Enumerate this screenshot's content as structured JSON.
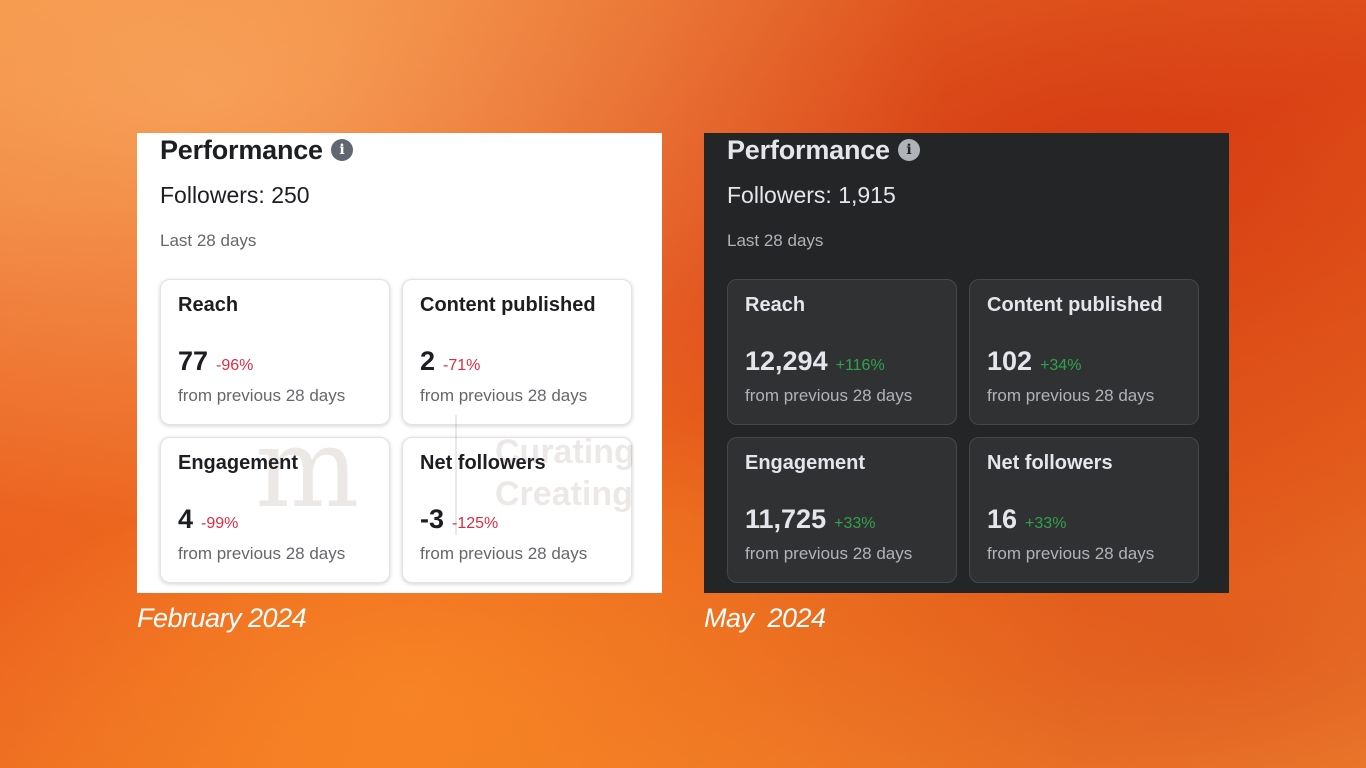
{
  "panels": [
    {
      "theme": "light",
      "title": "Performance",
      "info_icon": "info-circle-icon",
      "followers": "Followers: 250",
      "period": "Last 28 days",
      "cards": [
        {
          "title": "Reach",
          "value": "77",
          "change": "-96%",
          "trend": "negative",
          "subtext": "from previous 28 days"
        },
        {
          "title": "Content published",
          "value": "2",
          "change": "-71%",
          "trend": "negative",
          "subtext": "from previous 28 days"
        },
        {
          "title": "Engagement",
          "value": "4",
          "change": "-99%",
          "trend": "negative",
          "subtext": "from previous 28 days"
        },
        {
          "title": "Net followers",
          "value": "-3",
          "change": "-125%",
          "trend": "negative",
          "subtext": "from previous 28 days"
        }
      ],
      "caption": "February 2024"
    },
    {
      "theme": "dark",
      "title": "Performance",
      "info_icon": "info-circle-icon",
      "followers": "Followers: 1,915",
      "period": "Last 28 days",
      "cards": [
        {
          "title": "Reach",
          "value": "12,294",
          "change": "+116%",
          "trend": "positive",
          "subtext": "from previous 28 days"
        },
        {
          "title": "Content published",
          "value": "102",
          "change": "+34%",
          "trend": "positive",
          "subtext": "from previous 28 days"
        },
        {
          "title": "Engagement",
          "value": "11,725",
          "change": "+33%",
          "trend": "positive",
          "subtext": "from previous 28 days"
        },
        {
          "title": "Net followers",
          "value": "16",
          "change": "+33%",
          "trend": "positive",
          "subtext": "from previous 28 days"
        }
      ],
      "caption": "May  2024"
    }
  ],
  "watermark": {
    "mark": "m",
    "line1": "Curating",
    "line2": "Creating"
  },
  "colors": {
    "negative": "#e02a42",
    "positive": "#31a24c",
    "light_bg": "#ffffff",
    "dark_bg": "#242526"
  }
}
